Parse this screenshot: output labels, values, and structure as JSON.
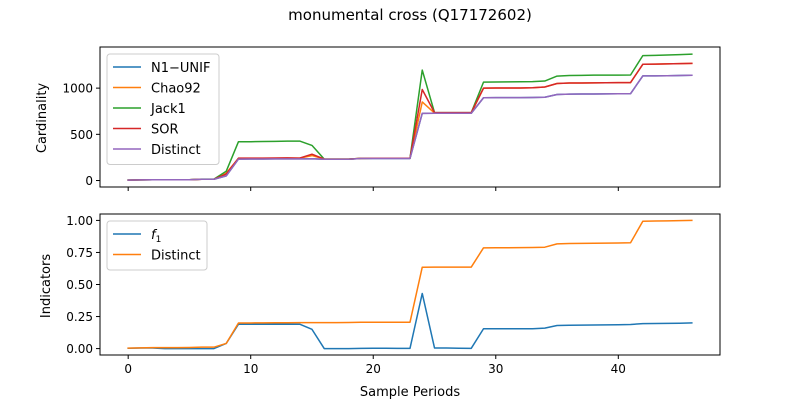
{
  "title": "monumental cross (Q17172602)",
  "chart_data": [
    {
      "type": "line",
      "ylabel": "Cardinality",
      "xlabel": "",
      "xlim": [
        -2.3,
        48.3
      ],
      "ylim": [
        -70,
        1445
      ],
      "xticks": [
        0,
        10,
        20,
        30,
        40
      ],
      "xtick_labels_visible": false,
      "yticks": [
        0,
        500,
        1000
      ],
      "yticks_labels": [
        "0",
        "500",
        "1000"
      ],
      "legend_position": "upper left",
      "x": [
        0,
        1,
        2,
        3,
        4,
        5,
        6,
        7,
        8,
        9,
        10,
        11,
        12,
        13,
        14,
        15,
        16,
        17,
        18,
        19,
        20,
        21,
        22,
        23,
        24,
        25,
        26,
        27,
        28,
        29,
        30,
        31,
        32,
        33,
        34,
        35,
        36,
        37,
        38,
        39,
        40,
        41,
        42,
        43,
        44,
        45,
        46
      ],
      "series": [
        {
          "name": "N1−UNIF",
          "color": "#1f77b4",
          "values": [
            5,
            7,
            8,
            8,
            8,
            9,
            14,
            14,
            50,
            232,
            233,
            233,
            234,
            234,
            235,
            236,
            230,
            230,
            230,
            238,
            239,
            239,
            239,
            239,
            727,
            728,
            728,
            728,
            728,
            896,
            897,
            897,
            897,
            899,
            901,
            931,
            935,
            936,
            937,
            938,
            939,
            940,
            1132,
            1133,
            1134,
            1137,
            1139
          ]
        },
        {
          "name": "Chao92",
          "color": "#ff7f0e",
          "values": [
            5,
            7,
            8,
            8,
            8,
            9,
            14,
            14,
            80,
            240,
            240,
            240,
            241,
            242,
            243,
            270,
            232,
            232,
            232,
            240,
            241,
            241,
            241,
            241,
            850,
            730,
            730,
            730,
            730,
            1000,
            1001,
            1001,
            1002,
            1004,
            1012,
            1050,
            1055,
            1056,
            1057,
            1058,
            1059,
            1060,
            1258,
            1260,
            1262,
            1265,
            1268
          ]
        },
        {
          "name": "Jack1",
          "color": "#2ca02c",
          "values": [
            5,
            7,
            8,
            8,
            8,
            9,
            15,
            15,
            100,
            420,
            420,
            422,
            424,
            427,
            427,
            380,
            232,
            232,
            232,
            240,
            241,
            241,
            241,
            241,
            1195,
            735,
            735,
            735,
            735,
            1065,
            1066,
            1068,
            1069,
            1070,
            1077,
            1130,
            1137,
            1138,
            1140,
            1140,
            1141,
            1142,
            1352,
            1355,
            1358,
            1363,
            1368
          ]
        },
        {
          "name": "SOR",
          "color": "#d62728",
          "values": [
            5,
            7,
            8,
            8,
            8,
            9,
            14,
            14,
            70,
            242,
            242,
            243,
            244,
            245,
            243,
            285,
            232,
            232,
            232,
            240,
            241,
            241,
            241,
            241,
            985,
            735,
            735,
            735,
            735,
            1000,
            1001,
            1001,
            1002,
            1004,
            1012,
            1050,
            1055,
            1056,
            1057,
            1058,
            1059,
            1060,
            1258,
            1260,
            1262,
            1265,
            1268
          ]
        },
        {
          "name": "Distinct",
          "color": "#9467bd",
          "values": [
            5,
            7,
            8,
            8,
            8,
            9,
            14,
            14,
            50,
            232,
            233,
            233,
            234,
            234,
            235,
            236,
            230,
            230,
            230,
            238,
            239,
            239,
            239,
            239,
            727,
            728,
            728,
            728,
            728,
            896,
            897,
            897,
            897,
            899,
            901,
            931,
            935,
            936,
            937,
            938,
            939,
            940,
            1132,
            1133,
            1134,
            1137,
            1139
          ]
        }
      ]
    },
    {
      "type": "line",
      "ylabel": "Indicators",
      "xlabel": "Sample Periods",
      "xlim": [
        -2.3,
        48.3
      ],
      "ylim": [
        -0.05,
        1.05
      ],
      "xticks": [
        0,
        10,
        20,
        30,
        40
      ],
      "xticks_labels": [
        "0",
        "10",
        "20",
        "30",
        "40"
      ],
      "yticks": [
        0.0,
        0.25,
        0.5,
        0.75,
        1.0
      ],
      "yticks_labels": [
        "0.00",
        "0.25",
        "0.50",
        "0.75",
        "1.00"
      ],
      "legend_position": "upper left",
      "x": [
        0,
        1,
        2,
        3,
        4,
        5,
        6,
        7,
        8,
        9,
        10,
        11,
        12,
        13,
        14,
        15,
        16,
        17,
        18,
        19,
        20,
        21,
        22,
        23,
        24,
        25,
        26,
        27,
        28,
        29,
        30,
        31,
        32,
        33,
        34,
        35,
        36,
        37,
        38,
        39,
        40,
        41,
        42,
        43,
        44,
        45,
        46
      ],
      "series": [
        {
          "name": "f1",
          "color": "#1f77b4",
          "values": [
            0.003,
            0.005,
            0.005,
            0.0,
            0.0,
            0.0,
            0.0,
            0.0,
            0.04,
            0.19,
            0.19,
            0.19,
            0.19,
            0.19,
            0.19,
            0.15,
            0.0,
            0.0,
            0.0,
            0.002,
            0.003,
            0.003,
            0.002,
            0.002,
            0.43,
            0.005,
            0.005,
            0.003,
            0.002,
            0.155,
            0.155,
            0.155,
            0.155,
            0.155,
            0.16,
            0.18,
            0.182,
            0.183,
            0.184,
            0.185,
            0.186,
            0.188,
            0.195,
            0.196,
            0.197,
            0.198,
            0.2
          ]
        },
        {
          "name": "Distinct",
          "color": "#ff7f0e",
          "values": [
            0.004,
            0.006,
            0.008,
            0.008,
            0.008,
            0.009,
            0.011,
            0.011,
            0.04,
            0.2,
            0.2,
            0.201,
            0.202,
            0.202,
            0.203,
            0.203,
            0.203,
            0.203,
            0.204,
            0.205,
            0.206,
            0.206,
            0.206,
            0.206,
            0.635,
            0.636,
            0.636,
            0.636,
            0.636,
            0.786,
            0.787,
            0.787,
            0.788,
            0.789,
            0.791,
            0.817,
            0.82,
            0.821,
            0.822,
            0.823,
            0.824,
            0.826,
            0.993,
            0.995,
            0.996,
            0.998,
            1.0
          ]
        }
      ]
    }
  ]
}
